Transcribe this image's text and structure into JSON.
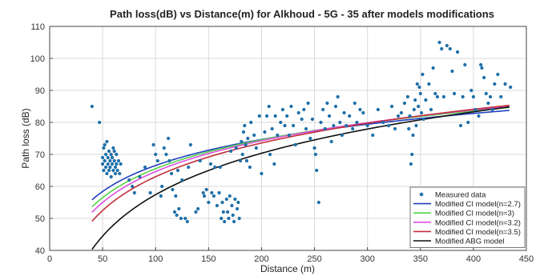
{
  "chart_data": {
    "type": "scatter",
    "title": "Path loss(dB) vs Distance(m) for Alkhoud - 5G - 35 after models modifications",
    "xlabel": "Distance (m)",
    "ylabel": "Path loss (dB)",
    "xlim": [
      0,
      450
    ],
    "ylim": [
      40,
      110
    ],
    "xticks": [
      0,
      50,
      100,
      150,
      200,
      250,
      300,
      350,
      400,
      450
    ],
    "yticks": [
      40,
      50,
      60,
      70,
      80,
      90,
      100,
      110
    ],
    "grid": true,
    "legend_position": "bottom-right",
    "colors": {
      "measured": "#1f6fa8",
      "n27": "#1f3fbf",
      "n3": "#55d24a",
      "n32": "#e04fe0",
      "n35": "#c0303a",
      "abg": "#111111"
    },
    "series": [
      {
        "name": "Measured data",
        "kind": "scatter",
        "color_key": "measured",
        "points": [
          [
            40,
            85
          ],
          [
            47,
            80
          ],
          [
            50,
            67
          ],
          [
            50,
            69
          ],
          [
            51,
            72
          ],
          [
            51,
            65
          ],
          [
            52,
            73
          ],
          [
            52,
            68
          ],
          [
            53,
            66
          ],
          [
            53,
            70
          ],
          [
            54,
            74
          ],
          [
            54,
            64
          ],
          [
            55,
            67
          ],
          [
            55,
            69
          ],
          [
            56,
            71
          ],
          [
            56,
            65
          ],
          [
            57,
            68
          ],
          [
            57,
            66
          ],
          [
            58,
            70
          ],
          [
            58,
            63
          ],
          [
            59,
            67
          ],
          [
            59,
            69
          ],
          [
            60,
            72
          ],
          [
            60,
            65
          ],
          [
            61,
            71
          ],
          [
            61,
            68
          ],
          [
            62,
            66
          ],
          [
            62,
            64
          ],
          [
            63,
            70
          ],
          [
            63,
            67
          ],
          [
            64,
            65
          ],
          [
            65,
            68
          ],
          [
            66,
            64
          ],
          [
            67,
            67
          ],
          [
            75,
            62
          ],
          [
            78,
            60
          ],
          [
            80,
            58
          ],
          [
            85,
            63
          ],
          [
            90,
            66
          ],
          [
            95,
            58
          ],
          [
            98,
            73
          ],
          [
            100,
            70
          ],
          [
            102,
            68
          ],
          [
            105,
            57
          ],
          [
            106,
            60
          ],
          [
            108,
            72
          ],
          [
            110,
            70
          ],
          [
            112,
            75
          ],
          [
            113,
            68
          ],
          [
            115,
            64
          ],
          [
            116,
            59
          ],
          [
            118,
            52
          ],
          [
            119,
            57
          ],
          [
            120,
            51
          ],
          [
            121,
            65
          ],
          [
            122,
            53
          ],
          [
            124,
            50
          ],
          [
            125,
            62
          ],
          [
            128,
            50
          ],
          [
            130,
            49
          ],
          [
            131,
            66
          ],
          [
            133,
            73
          ],
          [
            138,
            52
          ],
          [
            140,
            53
          ],
          [
            142,
            68
          ],
          [
            145,
            58
          ],
          [
            146,
            57
          ],
          [
            148,
            59
          ],
          [
            150,
            55
          ],
          [
            152,
            67
          ],
          [
            153,
            58
          ],
          [
            155,
            57
          ],
          [
            156,
            66
          ],
          [
            158,
            54
          ],
          [
            160,
            58
          ],
          [
            161,
            66
          ],
          [
            162,
            50
          ],
          [
            163,
            55
          ],
          [
            164,
            52
          ],
          [
            165,
            49
          ],
          [
            167,
            56
          ],
          [
            168,
            52
          ],
          [
            169,
            50
          ],
          [
            170,
            57
          ],
          [
            171,
            71
          ],
          [
            172,
            54
          ],
          [
            173,
            51
          ],
          [
            174,
            49
          ],
          [
            175,
            56
          ],
          [
            176,
            72
          ],
          [
            177,
            53
          ],
          [
            178,
            55
          ],
          [
            179,
            50
          ],
          [
            180,
            68
          ],
          [
            181,
            74
          ],
          [
            182,
            70
          ],
          [
            183,
            77
          ],
          [
            184,
            79
          ],
          [
            185,
            73
          ],
          [
            186,
            68
          ],
          [
            187,
            75
          ],
          [
            189,
            66
          ],
          [
            190,
            80
          ],
          [
            193,
            76
          ],
          [
            195,
            72
          ],
          [
            198,
            82
          ],
          [
            200,
            64
          ],
          [
            203,
            77
          ],
          [
            205,
            82
          ],
          [
            207,
            85
          ],
          [
            208,
            70
          ],
          [
            210,
            78
          ],
          [
            212,
            67
          ],
          [
            213,
            82
          ],
          [
            215,
            76
          ],
          [
            218,
            80
          ],
          [
            220,
            84
          ],
          [
            222,
            79
          ],
          [
            224,
            82
          ],
          [
            226,
            76
          ],
          [
            228,
            85
          ],
          [
            230,
            79
          ],
          [
            232,
            73
          ],
          [
            235,
            83
          ],
          [
            238,
            81
          ],
          [
            240,
            84
          ],
          [
            242,
            78
          ],
          [
            244,
            86
          ],
          [
            246,
            75
          ],
          [
            248,
            81
          ],
          [
            250,
            72
          ],
          [
            251,
            70
          ],
          [
            252,
            65
          ],
          [
            254,
            55
          ],
          [
            256,
            80
          ],
          [
            258,
            84
          ],
          [
            260,
            78
          ],
          [
            262,
            86
          ],
          [
            264,
            82
          ],
          [
            266,
            74
          ],
          [
            268,
            79
          ],
          [
            270,
            85
          ],
          [
            272,
            88
          ],
          [
            274,
            80
          ],
          [
            276,
            76
          ],
          [
            278,
            83
          ],
          [
            280,
            79
          ],
          [
            283,
            82
          ],
          [
            286,
            78
          ],
          [
            288,
            86
          ],
          [
            290,
            80
          ],
          [
            293,
            84
          ],
          [
            296,
            83
          ],
          [
            300,
            79
          ],
          [
            305,
            76
          ],
          [
            310,
            84
          ],
          [
            315,
            80
          ],
          [
            320,
            79
          ],
          [
            323,
            85
          ],
          [
            326,
            78
          ],
          [
            329,
            82
          ],
          [
            332,
            83
          ],
          [
            335,
            86
          ],
          [
            338,
            88
          ],
          [
            339,
            78
          ],
          [
            340,
            82
          ],
          [
            341,
            67
          ],
          [
            342,
            70
          ],
          [
            343,
            76
          ],
          [
            344,
            84
          ],
          [
            345,
            87
          ],
          [
            346,
            79
          ],
          [
            347,
            92
          ],
          [
            348,
            85
          ],
          [
            349,
            91
          ],
          [
            350,
            89
          ],
          [
            351,
            83
          ],
          [
            352,
            95
          ],
          [
            353,
            81
          ],
          [
            355,
            87
          ],
          [
            358,
            92
          ],
          [
            360,
            84
          ],
          [
            362,
            97
          ],
          [
            364,
            89
          ],
          [
            366,
            88
          ],
          [
            368,
            105
          ],
          [
            370,
            103
          ],
          [
            372,
            88
          ],
          [
            375,
            104
          ],
          [
            378,
            103
          ],
          [
            380,
            96
          ],
          [
            382,
            89
          ],
          [
            385,
            102
          ],
          [
            388,
            79
          ],
          [
            390,
            88
          ],
          [
            392,
            98
          ],
          [
            395,
            80
          ],
          [
            398,
            90
          ],
          [
            400,
            88
          ],
          [
            402,
            84
          ],
          [
            405,
            82
          ],
          [
            407,
            98
          ],
          [
            408,
            97
          ],
          [
            410,
            94
          ],
          [
            412,
            89
          ],
          [
            414,
            86
          ],
          [
            416,
            88
          ],
          [
            418,
            84
          ],
          [
            420,
            92
          ],
          [
            423,
            95
          ],
          [
            426,
            88
          ],
          [
            430,
            92
          ],
          [
            435,
            91
          ]
        ]
      },
      {
        "name": "Modified CI model(n=2.7)",
        "kind": "model",
        "color_key": "n27",
        "d0": 40,
        "pl0": 55.8,
        "n": 2.7
      },
      {
        "name": "Modified CI model(n=3)",
        "kind": "model",
        "color_key": "n3",
        "d0": 40,
        "pl0": 53.6,
        "n": 3.0
      },
      {
        "name": "Modified CI model(n=3.2)",
        "kind": "model",
        "color_key": "n32",
        "d0": 40,
        "pl0": 51.9,
        "n": 3.2
      },
      {
        "name": "Modified CI model(n=3.5)",
        "kind": "model",
        "color_key": "n35",
        "d0": 40,
        "pl0": 49.1,
        "n": 3.5
      },
      {
        "name": "Modified ABG model",
        "kind": "model",
        "color_key": "abg",
        "d0": 40,
        "pl0": 40.3,
        "n": 4.3
      }
    ]
  }
}
